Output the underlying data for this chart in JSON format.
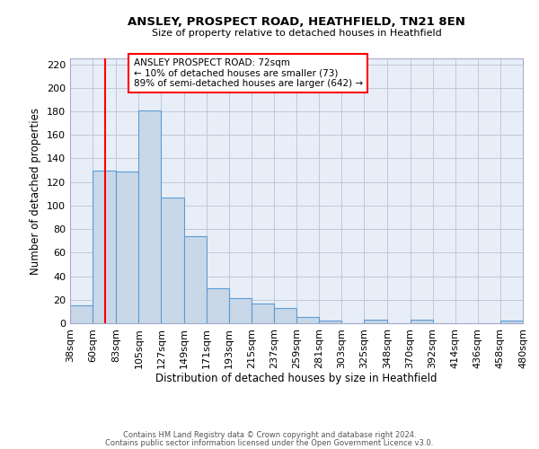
{
  "title": "ANSLEY, PROSPECT ROAD, HEATHFIELD, TN21 8EN",
  "subtitle": "Size of property relative to detached houses in Heathfield",
  "xlabel": "Distribution of detached houses by size in Heathfield",
  "ylabel": "Number of detached properties",
  "bar_color": "#c8d8e8",
  "bar_edge_color": "#5b9bd5",
  "background_color": "#e8eef8",
  "grid_color": "#c0c8d8",
  "vline_x": 72,
  "vline_color": "red",
  "annotation_title": "ANSLEY PROSPECT ROAD: 72sqm",
  "annotation_line1": "← 10% of detached houses are smaller (73)",
  "annotation_line2": "89% of semi-detached houses are larger (642) →",
  "footer_line1": "Contains HM Land Registry data © Crown copyright and database right 2024.",
  "footer_line2": "Contains public sector information licensed under the Open Government Licence v3.0.",
  "bin_labels": [
    "38sqm",
    "60sqm",
    "83sqm",
    "105sqm",
    "127sqm",
    "149sqm",
    "171sqm",
    "193sqm",
    "215sqm",
    "237sqm",
    "259sqm",
    "281sqm",
    "303sqm",
    "325sqm",
    "348sqm",
    "370sqm",
    "392sqm",
    "414sqm",
    "436sqm",
    "458sqm",
    "480sqm"
  ],
  "bin_edges": [
    38,
    60,
    83,
    105,
    127,
    149,
    171,
    193,
    215,
    237,
    259,
    281,
    303,
    325,
    348,
    370,
    392,
    414,
    436,
    458,
    480
  ],
  "bar_heights": [
    15,
    130,
    129,
    181,
    107,
    74,
    30,
    21,
    17,
    13,
    5,
    2,
    0,
    3,
    0,
    3,
    0,
    0,
    0,
    2
  ],
  "ylim": [
    0,
    225
  ],
  "yticks": [
    0,
    20,
    40,
    60,
    80,
    100,
    120,
    140,
    160,
    180,
    200,
    220
  ]
}
